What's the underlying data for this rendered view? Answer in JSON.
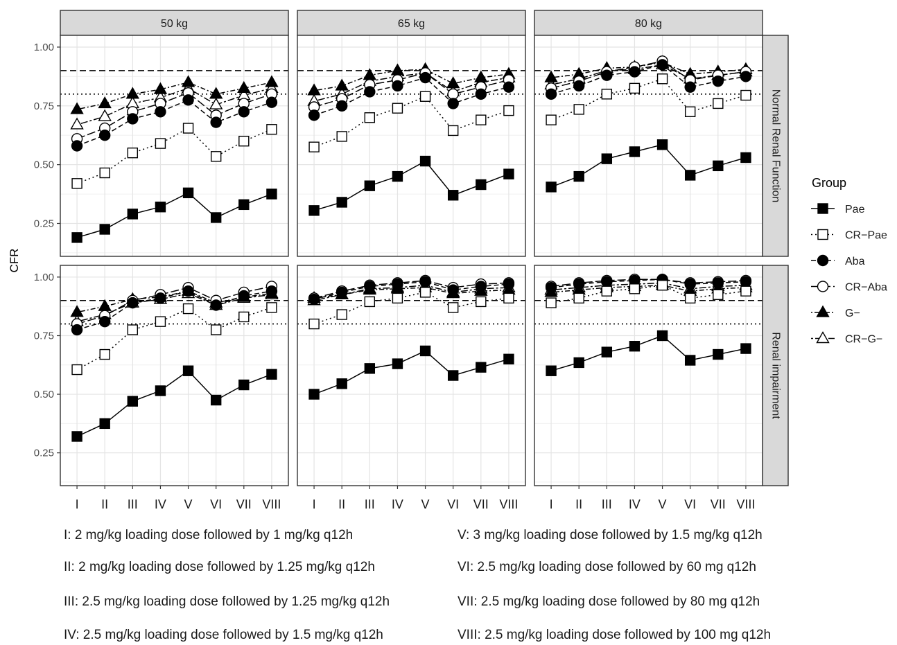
{
  "chart_data": {
    "type": "line",
    "ylabel": "CFR",
    "xlabel": "",
    "ylim": [
      0.11,
      1.05
    ],
    "yticks": [
      0.25,
      0.5,
      0.75,
      1.0
    ],
    "ytick_labels": [
      "0.25",
      "0.50",
      "0.75",
      "1.00"
    ],
    "categories": [
      "I",
      "II",
      "III",
      "IV",
      "V",
      "VI",
      "VII",
      "VIII"
    ],
    "columns": [
      "50 kg",
      "65 kg",
      "80 kg"
    ],
    "rows": [
      "Normal Renal Function",
      "Renal impairment"
    ],
    "reference_lines": [
      {
        "style": "dashed",
        "value": 0.9
      },
      {
        "style": "dotted",
        "value": 0.8
      }
    ],
    "grid": true,
    "legend": {
      "title": "Group",
      "placement": "right",
      "entries": [
        "Pae",
        "CR−Pae",
        "Aba",
        "CR−Aba",
        "G−",
        "CR−G−"
      ]
    },
    "series_styles": [
      {
        "name": "Pae",
        "marker": "square",
        "fill": "#000000",
        "dash": "solid"
      },
      {
        "name": "CR−Pae",
        "marker": "square",
        "fill": "#ffffff",
        "dash": "dotted"
      },
      {
        "name": "Aba",
        "marker": "circle",
        "fill": "#000000",
        "dash": "dashed"
      },
      {
        "name": "CR−Aba",
        "marker": "circle",
        "fill": "#ffffff",
        "dash": "longdash"
      },
      {
        "name": "G−",
        "marker": "triangle",
        "fill": "#000000",
        "dash": "dotdash"
      },
      {
        "name": "CR−G−",
        "marker": "triangle",
        "fill": "#ffffff",
        "dash": "twodash"
      }
    ],
    "panels": [
      {
        "row": 0,
        "col": 0,
        "series": [
          {
            "name": "Pae",
            "values": [
              0.19,
              0.225,
              0.29,
              0.32,
              0.38,
              0.275,
              0.33,
              0.375
            ]
          },
          {
            "name": "CR−Pae",
            "values": [
              0.42,
              0.465,
              0.55,
              0.59,
              0.655,
              0.535,
              0.6,
              0.65
            ]
          },
          {
            "name": "Aba",
            "values": [
              0.58,
              0.625,
              0.695,
              0.725,
              0.775,
              0.68,
              0.725,
              0.765
            ]
          },
          {
            "name": "CR−Aba",
            "values": [
              0.61,
              0.655,
              0.725,
              0.76,
              0.805,
              0.71,
              0.76,
              0.8
            ]
          },
          {
            "name": "G−",
            "values": [
              0.735,
              0.76,
              0.8,
              0.82,
              0.85,
              0.8,
              0.825,
              0.85
            ]
          },
          {
            "name": "CR−G−",
            "values": [
              0.67,
              0.705,
              0.76,
              0.785,
              0.825,
              0.755,
              0.795,
              0.825
            ]
          }
        ]
      },
      {
        "row": 0,
        "col": 1,
        "series": [
          {
            "name": "Pae",
            "values": [
              0.305,
              0.34,
              0.41,
              0.45,
              0.515,
              0.37,
              0.415,
              0.46
            ]
          },
          {
            "name": "CR−Pae",
            "values": [
              0.575,
              0.62,
              0.7,
              0.74,
              0.79,
              0.645,
              0.69,
              0.73
            ]
          },
          {
            "name": "Aba",
            "values": [
              0.71,
              0.75,
              0.81,
              0.835,
              0.87,
              0.76,
              0.8,
              0.83
            ]
          },
          {
            "name": "CR−Aba",
            "values": [
              0.745,
              0.78,
              0.84,
              0.86,
              0.89,
              0.8,
              0.83,
              0.86
            ]
          },
          {
            "name": "G−",
            "values": [
              0.815,
              0.835,
              0.88,
              0.9,
              0.905,
              0.845,
              0.87,
              0.885
            ]
          },
          {
            "name": "CR−G−",
            "values": [
              0.77,
              0.8,
              0.855,
              0.875,
              0.89,
              0.81,
              0.85,
              0.87
            ]
          }
        ]
      },
      {
        "row": 0,
        "col": 2,
        "series": [
          {
            "name": "Pae",
            "values": [
              0.405,
              0.45,
              0.525,
              0.555,
              0.585,
              0.455,
              0.495,
              0.53
            ]
          },
          {
            "name": "CR−Pae",
            "values": [
              0.69,
              0.735,
              0.8,
              0.825,
              0.865,
              0.725,
              0.76,
              0.795
            ]
          },
          {
            "name": "Aba",
            "values": [
              0.8,
              0.835,
              0.88,
              0.895,
              0.925,
              0.83,
              0.855,
              0.875
            ]
          },
          {
            "name": "CR−Aba",
            "values": [
              0.825,
              0.855,
              0.895,
              0.915,
              0.94,
              0.86,
              0.88,
              0.895
            ]
          },
          {
            "name": "G−",
            "values": [
              0.87,
              0.885,
              0.91,
              0.915,
              0.935,
              0.885,
              0.895,
              0.905
            ]
          },
          {
            "name": "CR−G−",
            "values": [
              0.84,
              0.865,
              0.9,
              0.905,
              0.925,
              0.865,
              0.88,
              0.895
            ]
          }
        ]
      },
      {
        "row": 1,
        "col": 0,
        "series": [
          {
            "name": "Pae",
            "values": [
              0.32,
              0.375,
              0.47,
              0.515,
              0.6,
              0.475,
              0.54,
              0.585
            ]
          },
          {
            "name": "CR−Pae",
            "values": [
              0.605,
              0.67,
              0.775,
              0.81,
              0.865,
              0.775,
              0.83,
              0.87
            ]
          },
          {
            "name": "Aba",
            "values": [
              0.775,
              0.81,
              0.89,
              0.91,
              0.94,
              0.88,
              0.92,
              0.94
            ]
          },
          {
            "name": "CR−Aba",
            "values": [
              0.8,
              0.835,
              0.9,
              0.925,
              0.955,
              0.9,
              0.935,
              0.96
            ]
          },
          {
            "name": "G−",
            "values": [
              0.85,
              0.875,
              0.905,
              0.915,
              0.94,
              0.89,
              0.915,
              0.93
            ]
          },
          {
            "name": "CR−G−",
            "values": [
              0.81,
              0.84,
              0.89,
              0.905,
              0.93,
              0.88,
              0.91,
              0.925
            ]
          }
        ]
      },
      {
        "row": 1,
        "col": 1,
        "series": [
          {
            "name": "Pae",
            "values": [
              0.5,
              0.545,
              0.61,
              0.63,
              0.685,
              0.58,
              0.615,
              0.65
            ]
          },
          {
            "name": "CR−Pae",
            "values": [
              0.8,
              0.84,
              0.895,
              0.91,
              0.935,
              0.87,
              0.895,
              0.91
            ]
          },
          {
            "name": "Aba",
            "values": [
              0.905,
              0.935,
              0.96,
              0.97,
              0.98,
              0.945,
              0.96,
              0.97
            ]
          },
          {
            "name": "CR−Aba",
            "values": [
              0.91,
              0.94,
              0.965,
              0.975,
              0.985,
              0.955,
              0.97,
              0.975
            ]
          },
          {
            "name": "G−",
            "values": [
              0.91,
              0.925,
              0.945,
              0.95,
              0.955,
              0.93,
              0.94,
              0.945
            ]
          },
          {
            "name": "CR−G−",
            "values": [
              0.9,
              0.925,
              0.95,
              0.955,
              0.965,
              0.935,
              0.95,
              0.955
            ]
          }
        ]
      },
      {
        "row": 1,
        "col": 2,
        "series": [
          {
            "name": "Pae",
            "values": [
              0.6,
              0.635,
              0.68,
              0.705,
              0.75,
              0.645,
              0.67,
              0.695
            ]
          },
          {
            "name": "CR−Pae",
            "values": [
              0.89,
              0.91,
              0.94,
              0.95,
              0.965,
              0.91,
              0.925,
              0.94
            ]
          },
          {
            "name": "Aba",
            "values": [
              0.955,
              0.97,
              0.98,
              0.985,
              0.99,
              0.97,
              0.975,
              0.98
            ]
          },
          {
            "name": "CR−Aba",
            "values": [
              0.96,
              0.975,
              0.985,
              0.99,
              0.99,
              0.975,
              0.98,
              0.985
            ]
          },
          {
            "name": "G−",
            "values": [
              0.935,
              0.945,
              0.955,
              0.96,
              0.965,
              0.94,
              0.95,
              0.955
            ]
          },
          {
            "name": "CR−G−",
            "values": [
              0.945,
              0.955,
              0.965,
              0.97,
              0.975,
              0.95,
              0.96,
              0.965
            ]
          }
        ]
      }
    ],
    "annotations": [
      "I: 2 mg/kg loading dose followed by 1 mg/kg q12h",
      "II: 2 mg/kg loading dose followed by 1.25 mg/kg q12h",
      "III: 2.5 mg/kg loading dose followed by 1.25 mg/kg q12h",
      "IV: 2.5 mg/kg loading dose followed by 1.5 mg/kg q12h",
      "V: 3 mg/kg loading dose followed by 1.5 mg/kg q12h",
      "VI: 2.5 mg/kg loading dose followed by 60 mg q12h",
      "VII: 2.5 mg/kg loading dose followed by 80 mg q12h",
      "VIII: 2.5 mg/kg loading dose followed by 100 mg q12h"
    ]
  }
}
